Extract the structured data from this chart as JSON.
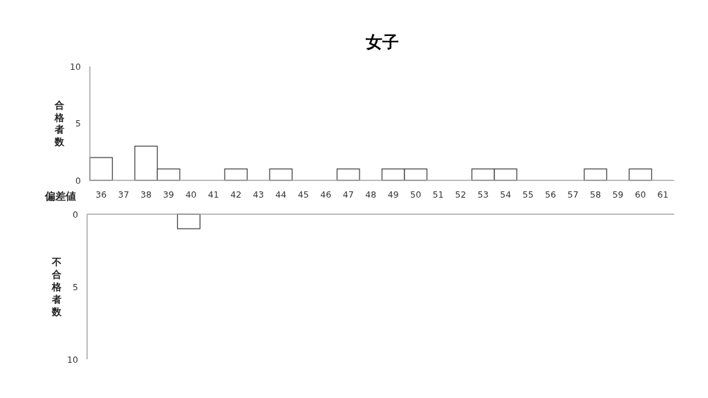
{
  "chart_data": [
    {
      "type": "bar",
      "title": "女子",
      "xlabel": "偏差値",
      "ylabel": "合格者数",
      "categories": [
        "36",
        "37",
        "38",
        "39",
        "40",
        "41",
        "42",
        "43",
        "44",
        "45",
        "46",
        "47",
        "48",
        "49",
        "50",
        "51",
        "52",
        "53",
        "54",
        "55",
        "56",
        "57",
        "58",
        "59",
        "60",
        "61"
      ],
      "values": [
        2,
        0,
        3,
        1,
        0,
        0,
        1,
        0,
        1,
        0,
        0,
        1,
        0,
        1,
        1,
        0,
        0,
        1,
        1,
        0,
        0,
        0,
        1,
        0,
        1,
        0
      ],
      "color": "#ffffff",
      "ylim": [
        0,
        10
      ],
      "yticks": [
        0,
        5,
        10
      ]
    },
    {
      "type": "bar",
      "ylabel": "不合格者数",
      "categories": [
        "36",
        "37",
        "38",
        "39",
        "40",
        "41",
        "42",
        "43",
        "44",
        "45",
        "46",
        "47",
        "48",
        "49",
        "50",
        "51",
        "52",
        "53",
        "54",
        "55",
        "56",
        "57",
        "58",
        "59",
        "60",
        "61"
      ],
      "values": [
        0,
        0,
        0,
        0,
        1,
        0,
        0,
        0,
        0,
        0,
        0,
        0,
        0,
        0,
        0,
        0,
        0,
        0,
        0,
        0,
        0,
        0,
        0,
        0,
        0,
        0
      ],
      "color": "#ffffff",
      "ylim": [
        10,
        0
      ],
      "yticks": [
        0,
        5,
        10
      ],
      "tick_labels": "y"
    }
  ]
}
